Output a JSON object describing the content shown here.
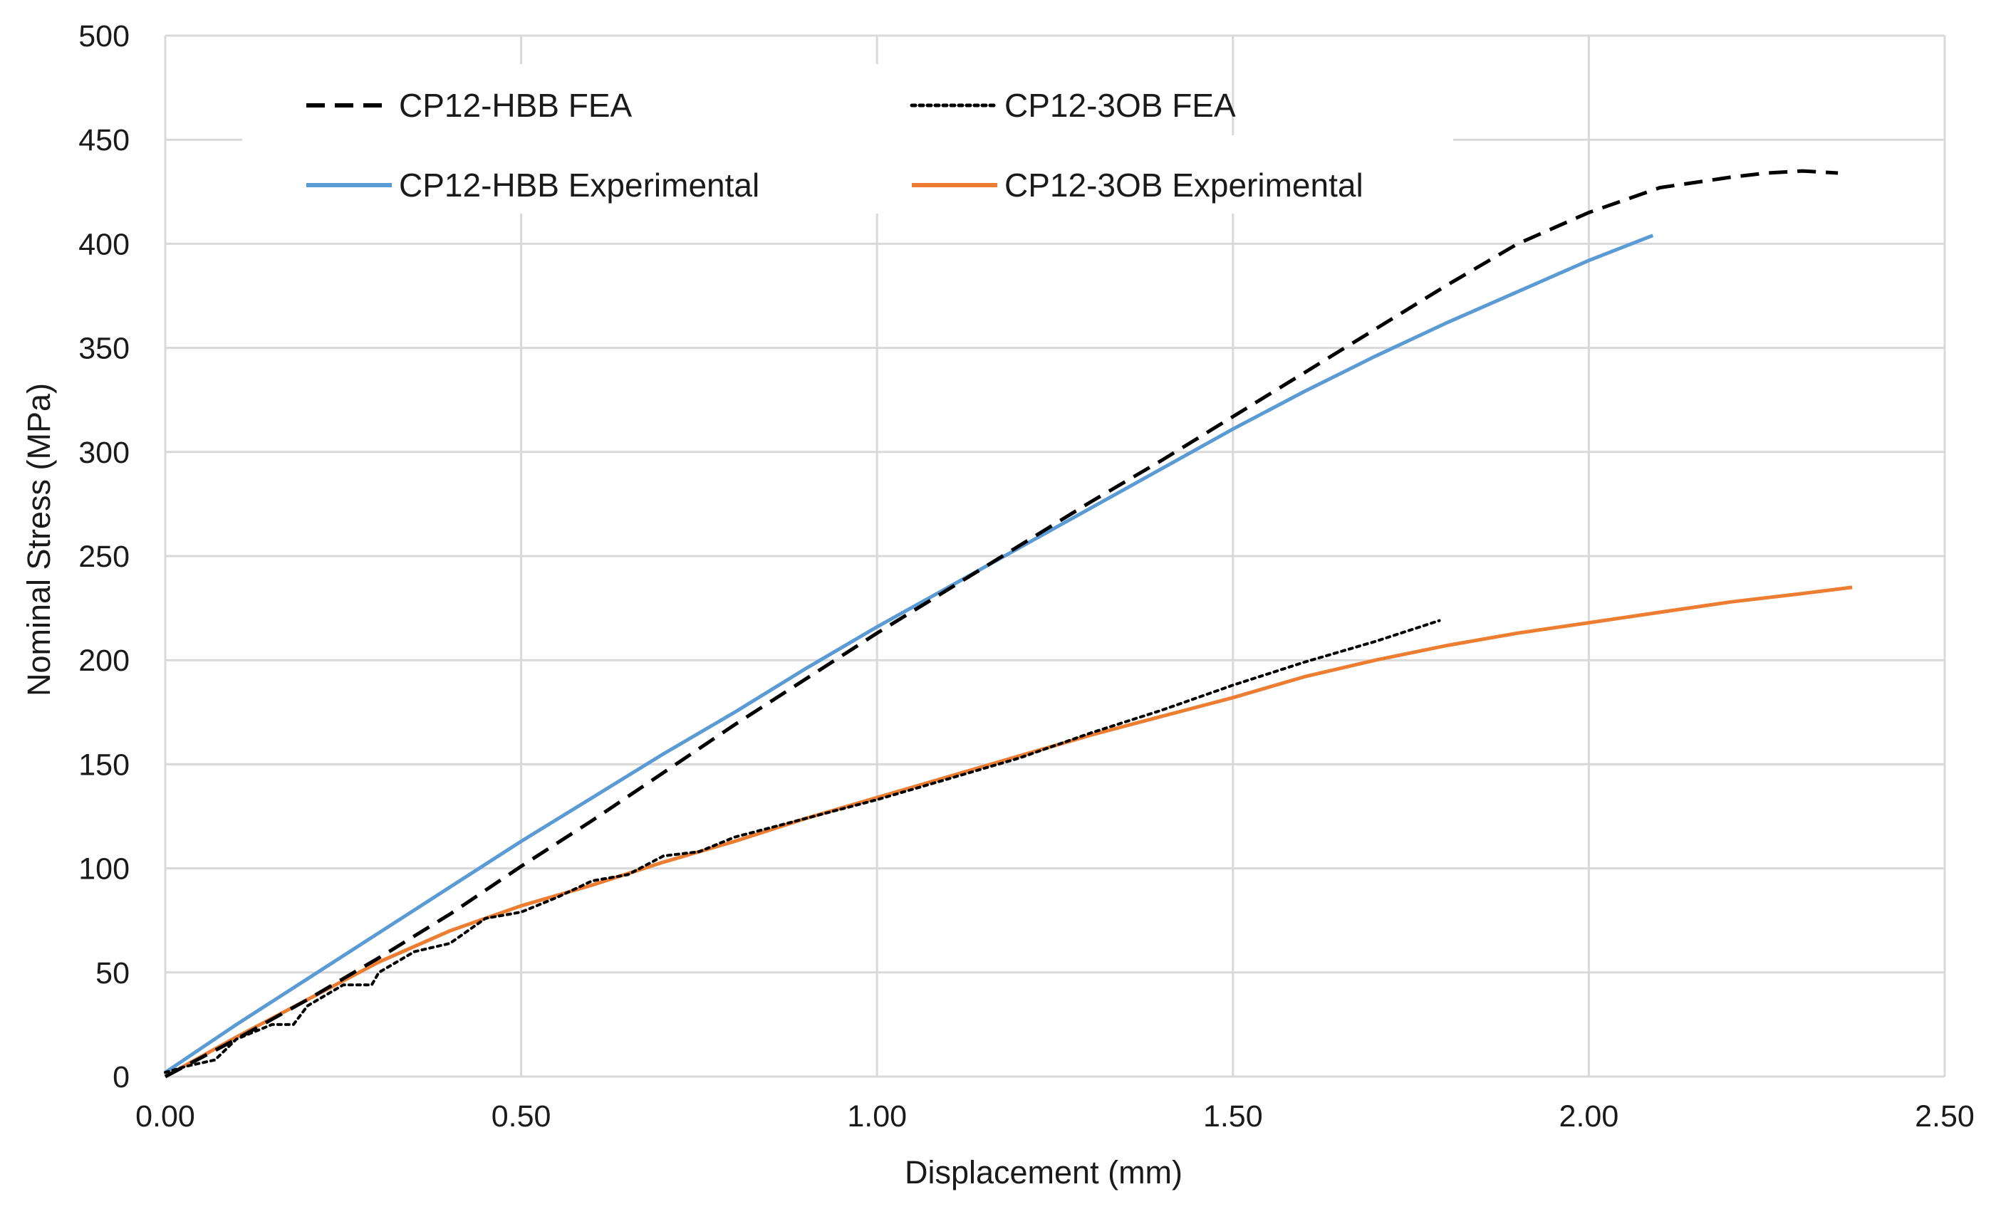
{
  "colors": {
    "background": "#ffffff",
    "grid": "#d9d9d9",
    "text": "#1a1a1a",
    "fea": "#000000",
    "hbb_experimental": "#5b9bd5",
    "ob_experimental": "#ed7d31"
  },
  "chart_data": {
    "type": "line",
    "title": "",
    "xlabel": "Displacement (mm)",
    "ylabel": "Nominal Stress (MPa)",
    "xlim": [
      0,
      2.5
    ],
    "ylim": [
      0,
      500
    ],
    "grid": true,
    "legend_position": "top-left",
    "x_ticks": [
      {
        "value": 0,
        "label": "0.00"
      },
      {
        "value": 0.5,
        "label": "0.50"
      },
      {
        "value": 1.0,
        "label": "1.00"
      },
      {
        "value": 1.5,
        "label": "1.50"
      },
      {
        "value": 2.0,
        "label": "2.00"
      },
      {
        "value": 2.5,
        "label": "2.50"
      }
    ],
    "y_ticks": [
      {
        "value": 0,
        "label": "0"
      },
      {
        "value": 50,
        "label": "50"
      },
      {
        "value": 100,
        "label": "100"
      },
      {
        "value": 150,
        "label": "150"
      },
      {
        "value": 200,
        "label": "200"
      },
      {
        "value": 250,
        "label": "250"
      },
      {
        "value": 300,
        "label": "300"
      },
      {
        "value": 350,
        "label": "350"
      },
      {
        "value": 400,
        "label": "400"
      },
      {
        "value": 450,
        "label": "450"
      },
      {
        "value": 500,
        "label": "500"
      }
    ],
    "series": [
      {
        "name": "CP12-HBB FEA",
        "style": "dashed",
        "color": "#000000",
        "points": [
          [
            0.0,
            0
          ],
          [
            0.1,
            18
          ],
          [
            0.2,
            37
          ],
          [
            0.3,
            57
          ],
          [
            0.4,
            78
          ],
          [
            0.5,
            101
          ],
          [
            0.6,
            123
          ],
          [
            0.7,
            146
          ],
          [
            0.8,
            169
          ],
          [
            0.9,
            191
          ],
          [
            1.0,
            213
          ],
          [
            1.1,
            234
          ],
          [
            1.2,
            255
          ],
          [
            1.3,
            276
          ],
          [
            1.4,
            296
          ],
          [
            1.5,
            317
          ],
          [
            1.6,
            338
          ],
          [
            1.7,
            359
          ],
          [
            1.8,
            380
          ],
          [
            1.9,
            400
          ],
          [
            2.0,
            415
          ],
          [
            2.1,
            427
          ],
          [
            2.2,
            432
          ],
          [
            2.25,
            434
          ],
          [
            2.3,
            435
          ],
          [
            2.35,
            434
          ]
        ]
      },
      {
        "name": "CP12-3OB FEA",
        "style": "dotted",
        "color": "#000000",
        "points": [
          [
            0.0,
            2
          ],
          [
            0.03,
            5
          ],
          [
            0.07,
            8
          ],
          [
            0.1,
            18
          ],
          [
            0.15,
            25
          ],
          [
            0.18,
            25
          ],
          [
            0.2,
            34
          ],
          [
            0.25,
            44
          ],
          [
            0.29,
            44
          ],
          [
            0.3,
            50
          ],
          [
            0.35,
            60
          ],
          [
            0.4,
            64
          ],
          [
            0.45,
            76
          ],
          [
            0.5,
            79
          ],
          [
            0.55,
            86
          ],
          [
            0.6,
            94
          ],
          [
            0.65,
            97
          ],
          [
            0.7,
            106
          ],
          [
            0.75,
            108
          ],
          [
            0.8,
            115
          ],
          [
            0.9,
            124
          ],
          [
            1.0,
            133
          ],
          [
            1.1,
            143
          ],
          [
            1.2,
            153
          ],
          [
            1.3,
            165
          ],
          [
            1.4,
            176
          ],
          [
            1.5,
            188
          ],
          [
            1.6,
            199
          ],
          [
            1.7,
            209
          ],
          [
            1.79,
            219
          ]
        ]
      },
      {
        "name": "CP12-HBB Experimental",
        "style": "solid",
        "color": "#5b9bd5",
        "points": [
          [
            0.0,
            2
          ],
          [
            0.1,
            25
          ],
          [
            0.2,
            47
          ],
          [
            0.3,
            69
          ],
          [
            0.4,
            91
          ],
          [
            0.5,
            113
          ],
          [
            0.6,
            134
          ],
          [
            0.7,
            155
          ],
          [
            0.8,
            175
          ],
          [
            0.9,
            196
          ],
          [
            1.0,
            216
          ],
          [
            1.1,
            235
          ],
          [
            1.2,
            254
          ],
          [
            1.3,
            273
          ],
          [
            1.4,
            292
          ],
          [
            1.5,
            311
          ],
          [
            1.6,
            329
          ],
          [
            1.7,
            346
          ],
          [
            1.8,
            362
          ],
          [
            1.9,
            377
          ],
          [
            2.0,
            392
          ],
          [
            2.09,
            404
          ]
        ]
      },
      {
        "name": "CP12-3OB Experimental",
        "style": "solid",
        "color": "#ed7d31",
        "points": [
          [
            0.0,
            0
          ],
          [
            0.1,
            19
          ],
          [
            0.2,
            37
          ],
          [
            0.3,
            55
          ],
          [
            0.4,
            70
          ],
          [
            0.5,
            82
          ],
          [
            0.6,
            92
          ],
          [
            0.7,
            103
          ],
          [
            0.8,
            113
          ],
          [
            0.9,
            124
          ],
          [
            1.0,
            134
          ],
          [
            1.1,
            144
          ],
          [
            1.2,
            154
          ],
          [
            1.3,
            164
          ],
          [
            1.4,
            173
          ],
          [
            1.5,
            182
          ],
          [
            1.6,
            192
          ],
          [
            1.7,
            200
          ],
          [
            1.8,
            207
          ],
          [
            1.9,
            213
          ],
          [
            2.0,
            218
          ],
          [
            2.1,
            223
          ],
          [
            2.2,
            228
          ],
          [
            2.3,
            232
          ],
          [
            2.37,
            235
          ]
        ]
      }
    ],
    "legend": {
      "items": [
        {
          "label": "CP12-HBB FEA",
          "series": 0
        },
        {
          "label": "CP12-3OB FEA",
          "series": 1
        },
        {
          "label": "CP12-HBB Experimental",
          "series": 2
        },
        {
          "label": "CP12-3OB Experimental",
          "series": 3
        }
      ]
    }
  }
}
